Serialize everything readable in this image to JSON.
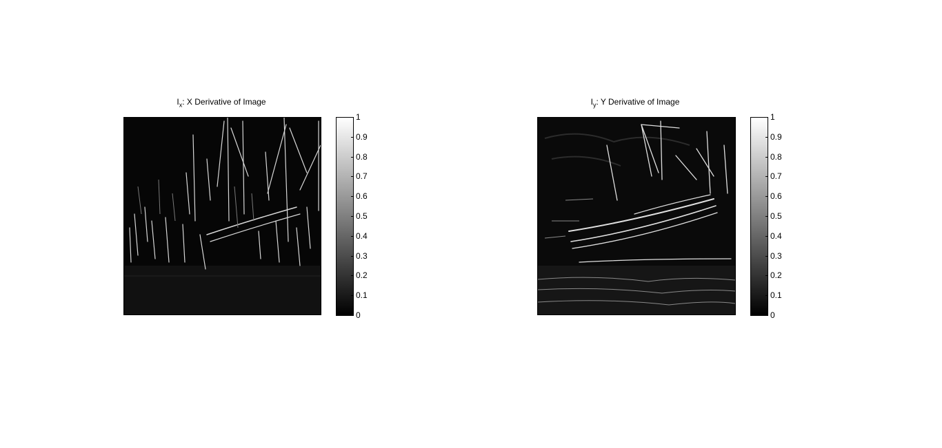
{
  "figures": [
    {
      "title_main": "I",
      "title_sub": "x",
      "title_rest": ": X Derivative of Image",
      "image_description_icon": "edge-map-x-derivative",
      "colorbar": {
        "ticks": [
          "0",
          "0.1",
          "0.2",
          "0.3",
          "0.4",
          "0.5",
          "0.6",
          "0.7",
          "0.8",
          "0.9",
          "1"
        ],
        "range": [
          0,
          1
        ],
        "colormap": "gray"
      }
    },
    {
      "title_main": "I",
      "title_sub": "y",
      "title_rest": ": Y Derivative of Image",
      "image_description_icon": "edge-map-y-derivative",
      "colorbar": {
        "ticks": [
          "0",
          "0.1",
          "0.2",
          "0.3",
          "0.4",
          "0.5",
          "0.6",
          "0.7",
          "0.8",
          "0.9",
          "1"
        ],
        "range": [
          0,
          1
        ],
        "colormap": "gray"
      }
    }
  ],
  "colors": {
    "background": "#ffffff",
    "image_bg": "#080808",
    "edge": "#e8e8e8"
  }
}
